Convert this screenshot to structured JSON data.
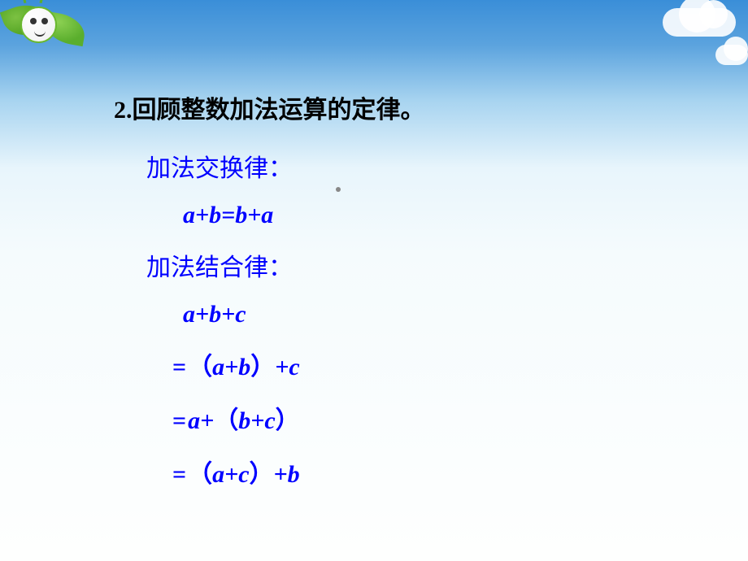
{
  "slide": {
    "title": "2.回顾整数加法运算的定律。",
    "commutative_label": "加法交换律：",
    "commutative_formula": "a+b=b+a",
    "associative_label": "加法结合律：",
    "associative_line1": "a+b+c",
    "associative_eq1_pre": "=",
    "associative_eq1_paren_open": "（",
    "associative_eq1_mid": "a+b",
    "associative_eq1_paren_close": "）",
    "associative_eq1_post": "+c",
    "associative_eq2_pre": "=",
    "associative_eq2_a": "a+",
    "associative_eq2_paren_open": "（",
    "associative_eq2_mid": "b+c",
    "associative_eq2_paren_close": "）",
    "associative_eq3_pre": "=",
    "associative_eq3_paren_open": "（",
    "associative_eq3_mid": "a+c",
    "associative_eq3_paren_close": "）",
    "associative_eq3_post": "+b"
  },
  "styling": {
    "title_color": "#000000",
    "formula_color": "#0000ff",
    "title_fontsize": 30,
    "formula_fontsize": 30,
    "background_gradient": [
      "#3a8ed8",
      "#5ba3de",
      "#a8d4f0",
      "#e8f5fc",
      "#f5fbfd",
      "#fefffe"
    ],
    "leaf_colors": [
      "#7cc142",
      "#4a9e1d",
      "#8dd153",
      "#5aae2d"
    ],
    "cloud_color": "rgba(255,255,255,0.9)"
  }
}
